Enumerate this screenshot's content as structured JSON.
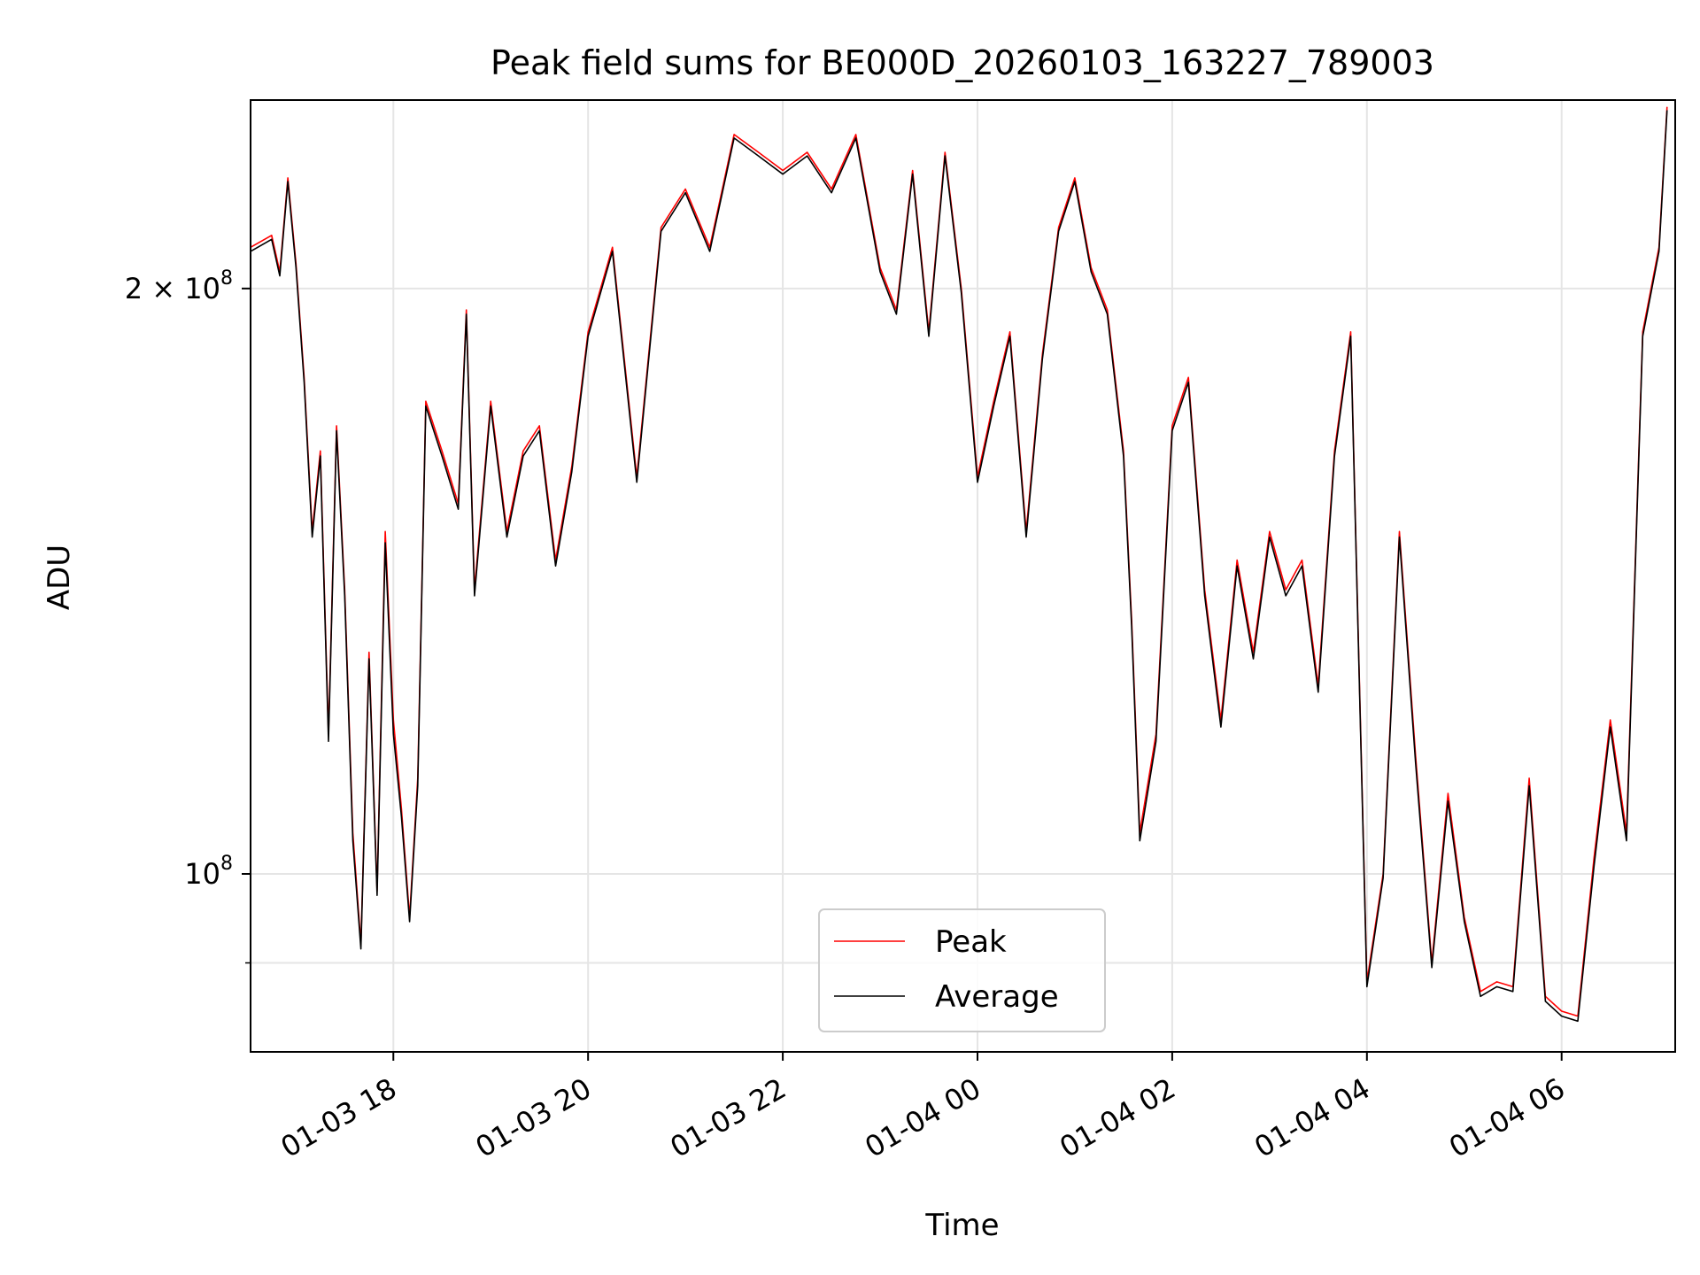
{
  "chart_data": {
    "type": "line",
    "title": "Peak field sums for BE000D_20260103_163227_789003",
    "xlabel": "Time",
    "ylabel": "ADU",
    "y_scale": "log",
    "xlim": [
      "2026-01-03 16:32",
      "2026-01-04 07:10"
    ],
    "ylim": [
      81000000,
      250000000
    ],
    "x_ticks": [
      "01-03 18",
      "01-03 20",
      "01-03 22",
      "01-04 00",
      "01-04 02",
      "01-04 04",
      "01-04 06"
    ],
    "x_tick_times": [
      "2026-01-03 18:00",
      "2026-01-03 20:00",
      "2026-01-03 22:00",
      "2026-01-04 00:00",
      "2026-01-04 02:00",
      "2026-01-04 04:00",
      "2026-01-04 06:00"
    ],
    "y_ticks": [
      {
        "value": 100000000,
        "label": "10",
        "exp": "8"
      },
      {
        "value": 200000000,
        "label": "2 × 10",
        "exp": "8"
      }
    ],
    "y_minor_gridlines": [
      90000000
    ],
    "grid": true,
    "legend": "bottom-center",
    "series": [
      {
        "name": "Peak",
        "color": "#ff0000",
        "x": [
          "2026-01-03 16:32",
          "2026-01-03 16:45",
          "2026-01-03 16:50",
          "2026-01-03 16:55",
          "2026-01-03 17:00",
          "2026-01-03 17:05",
          "2026-01-03 17:10",
          "2026-01-03 17:15",
          "2026-01-03 17:20",
          "2026-01-03 17:25",
          "2026-01-03 17:30",
          "2026-01-03 17:35",
          "2026-01-03 17:40",
          "2026-01-03 17:45",
          "2026-01-03 17:50",
          "2026-01-03 17:55",
          "2026-01-03 18:00",
          "2026-01-03 18:05",
          "2026-01-03 18:10",
          "2026-01-03 18:15",
          "2026-01-03 18:20",
          "2026-01-03 18:30",
          "2026-01-03 18:40",
          "2026-01-03 18:45",
          "2026-01-03 18:50",
          "2026-01-03 19:00",
          "2026-01-03 19:10",
          "2026-01-03 19:20",
          "2026-01-03 19:30",
          "2026-01-03 19:40",
          "2026-01-03 19:50",
          "2026-01-03 20:00",
          "2026-01-03 20:15",
          "2026-01-03 20:30",
          "2026-01-03 20:45",
          "2026-01-03 21:00",
          "2026-01-03 21:15",
          "2026-01-03 21:30",
          "2026-01-03 21:45",
          "2026-01-03 22:00",
          "2026-01-03 22:15",
          "2026-01-03 22:30",
          "2026-01-03 22:45",
          "2026-01-03 23:00",
          "2026-01-03 23:10",
          "2026-01-03 23:20",
          "2026-01-03 23:30",
          "2026-01-03 23:40",
          "2026-01-03 23:50",
          "2026-01-04 00:00",
          "2026-01-04 00:10",
          "2026-01-04 00:20",
          "2026-01-04 00:30",
          "2026-01-04 00:40",
          "2026-01-04 00:50",
          "2026-01-04 01:00",
          "2026-01-04 01:10",
          "2026-01-04 01:20",
          "2026-01-04 01:30",
          "2026-01-04 01:35",
          "2026-01-04 01:40",
          "2026-01-04 01:50",
          "2026-01-04 02:00",
          "2026-01-04 02:10",
          "2026-01-04 02:20",
          "2026-01-04 02:30",
          "2026-01-04 02:40",
          "2026-01-04 02:50",
          "2026-01-04 03:00",
          "2026-01-04 03:10",
          "2026-01-04 03:20",
          "2026-01-04 03:30",
          "2026-01-04 03:40",
          "2026-01-04 03:50",
          "2026-01-04 04:00",
          "2026-01-04 04:10",
          "2026-01-04 04:20",
          "2026-01-04 04:30",
          "2026-01-04 04:40",
          "2026-01-04 04:50",
          "2026-01-04 05:00",
          "2026-01-04 05:10",
          "2026-01-04 05:20",
          "2026-01-04 05:30",
          "2026-01-04 05:40",
          "2026-01-04 05:50",
          "2026-01-04 06:00",
          "2026-01-04 06:10",
          "2026-01-04 06:20",
          "2026-01-04 06:30",
          "2026-01-04 06:40",
          "2026-01-04 06:50",
          "2026-01-04 07:00",
          "2026-01-04 07:05"
        ],
        "y": [
          210000000,
          213000000,
          204000000,
          228000000,
          206000000,
          180000000,
          150000000,
          165000000,
          118000000,
          170000000,
          140000000,
          105000000,
          92000000,
          130000000,
          98000000,
          150000000,
          120000000,
          108000000,
          95000000,
          112000000,
          175000000,
          165000000,
          155000000,
          195000000,
          140000000,
          175000000,
          150000000,
          165000000,
          170000000,
          145000000,
          162000000,
          190000000,
          210000000,
          160000000,
          215000000,
          225000000,
          210000000,
          240000000,
          235000000,
          230000000,
          235000000,
          225000000,
          240000000,
          205000000,
          195000000,
          230000000,
          190000000,
          235000000,
          200000000,
          160000000,
          175000000,
          190000000,
          150000000,
          185000000,
          215000000,
          228000000,
          205000000,
          195000000,
          165000000,
          135000000,
          105000000,
          118000000,
          170000000,
          180000000,
          140000000,
          120000000,
          145000000,
          130000000,
          150000000,
          140000000,
          145000000,
          125000000,
          165000000,
          190000000,
          88000000,
          100000000,
          150000000,
          115000000,
          90000000,
          110000000,
          95000000,
          87000000,
          88000000,
          87500000,
          112000000,
          86500000,
          85000000,
          84500000,
          102000000,
          120000000,
          105000000,
          190000000,
          210000000,
          248000000
        ]
      },
      {
        "name": "Average",
        "color": "#000000",
        "x": [
          "2026-01-03 16:32",
          "2026-01-03 16:45",
          "2026-01-03 16:50",
          "2026-01-03 16:55",
          "2026-01-03 17:00",
          "2026-01-03 17:05",
          "2026-01-03 17:10",
          "2026-01-03 17:15",
          "2026-01-03 17:20",
          "2026-01-03 17:25",
          "2026-01-03 17:30",
          "2026-01-03 17:35",
          "2026-01-03 17:40",
          "2026-01-03 17:45",
          "2026-01-03 17:50",
          "2026-01-03 17:55",
          "2026-01-03 18:00",
          "2026-01-03 18:05",
          "2026-01-03 18:10",
          "2026-01-03 18:15",
          "2026-01-03 18:20",
          "2026-01-03 18:30",
          "2026-01-03 18:40",
          "2026-01-03 18:45",
          "2026-01-03 18:50",
          "2026-01-03 19:00",
          "2026-01-03 19:10",
          "2026-01-03 19:20",
          "2026-01-03 19:30",
          "2026-01-03 19:40",
          "2026-01-03 19:50",
          "2026-01-03 20:00",
          "2026-01-03 20:15",
          "2026-01-03 20:30",
          "2026-01-03 20:45",
          "2026-01-03 21:00",
          "2026-01-03 21:15",
          "2026-01-03 21:30",
          "2026-01-03 21:45",
          "2026-01-03 22:00",
          "2026-01-03 22:15",
          "2026-01-03 22:30",
          "2026-01-03 22:45",
          "2026-01-03 23:00",
          "2026-01-03 23:10",
          "2026-01-03 23:20",
          "2026-01-03 23:30",
          "2026-01-03 23:40",
          "2026-01-03 23:50",
          "2026-01-04 00:00",
          "2026-01-04 00:10",
          "2026-01-04 00:20",
          "2026-01-04 00:30",
          "2026-01-04 00:40",
          "2026-01-04 00:50",
          "2026-01-04 01:00",
          "2026-01-04 01:10",
          "2026-01-04 01:20",
          "2026-01-04 01:30",
          "2026-01-04 01:35",
          "2026-01-04 01:40",
          "2026-01-04 01:50",
          "2026-01-04 02:00",
          "2026-01-04 02:10",
          "2026-01-04 02:20",
          "2026-01-04 02:30",
          "2026-01-04 02:40",
          "2026-01-04 02:50",
          "2026-01-04 03:00",
          "2026-01-04 03:10",
          "2026-01-04 03:20",
          "2026-01-04 03:30",
          "2026-01-04 03:40",
          "2026-01-04 03:50",
          "2026-01-04 04:00",
          "2026-01-04 04:10",
          "2026-01-04 04:20",
          "2026-01-04 04:30",
          "2026-01-04 04:40",
          "2026-01-04 04:50",
          "2026-01-04 05:00",
          "2026-01-04 05:10",
          "2026-01-04 05:20",
          "2026-01-04 05:30",
          "2026-01-04 05:40",
          "2026-01-04 05:50",
          "2026-01-04 06:00",
          "2026-01-04 06:10",
          "2026-01-04 06:20",
          "2026-01-04 06:30",
          "2026-01-04 06:40",
          "2026-01-04 06:50",
          "2026-01-04 07:00",
          "2026-01-04 07:05"
        ],
        "y": [
          209000000,
          212000000,
          203000000,
          227000000,
          205000000,
          179000000,
          149000000,
          164000000,
          117000000,
          169000000,
          139000000,
          104000000,
          91500000,
          129000000,
          97500000,
          148000000,
          118000000,
          107000000,
          94500000,
          111000000,
          174000000,
          164000000,
          154000000,
          194000000,
          139000000,
          174000000,
          149000000,
          164000000,
          169000000,
          144000000,
          161000000,
          189000000,
          209000000,
          159000000,
          214000000,
          224000000,
          209000000,
          239000000,
          234000000,
          229000000,
          234000000,
          224000000,
          239000000,
          204000000,
          194000000,
          229000000,
          189000000,
          234000000,
          199000000,
          159000000,
          174000000,
          189000000,
          149000000,
          184000000,
          214000000,
          227000000,
          204000000,
          194000000,
          164000000,
          134000000,
          104000000,
          117000000,
          169000000,
          179000000,
          139000000,
          119000000,
          144000000,
          129000000,
          149000000,
          139000000,
          144000000,
          124000000,
          164000000,
          189000000,
          87500000,
          99500000,
          149000000,
          114000000,
          89500000,
          109000000,
          94500000,
          86500000,
          87500000,
          87000000,
          111000000,
          86000000,
          84500000,
          84000000,
          101000000,
          119000000,
          104000000,
          189000000,
          209000000,
          247000000
        ]
      }
    ]
  }
}
